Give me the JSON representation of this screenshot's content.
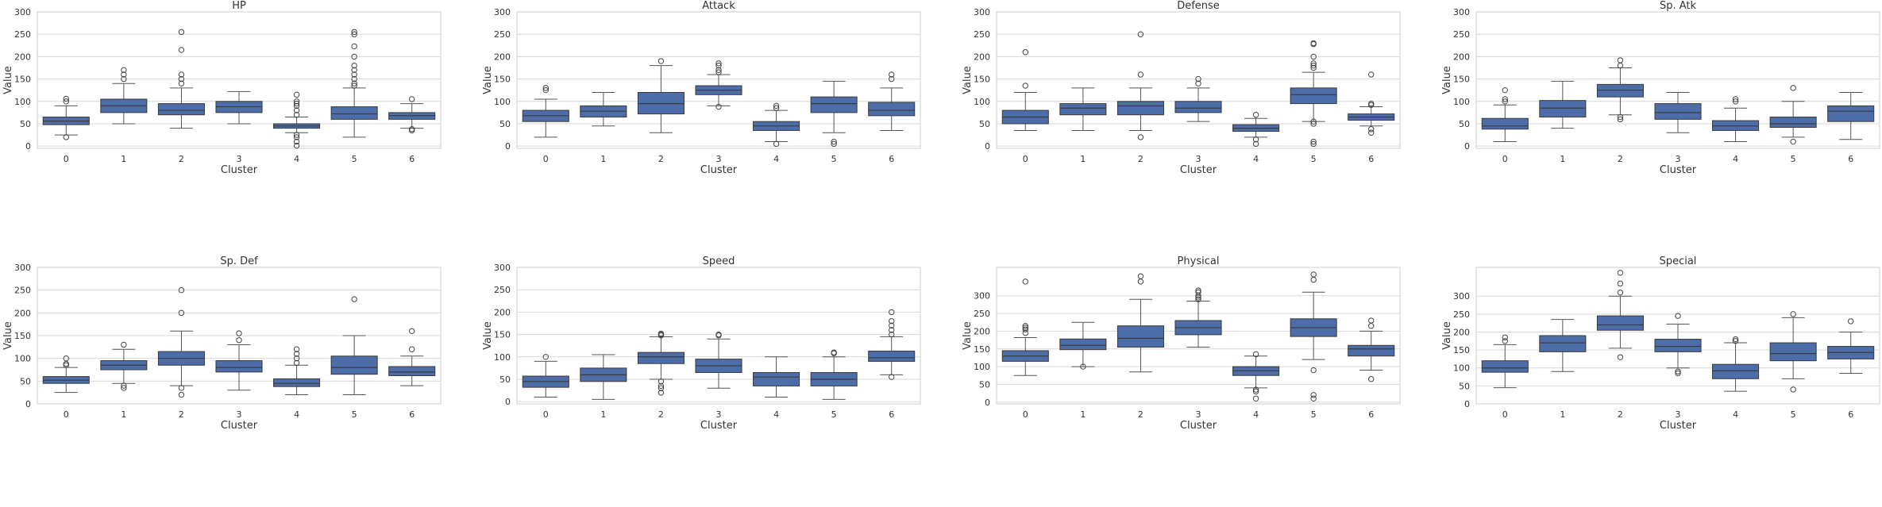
{
  "chart_data": [
    {
      "type": "box",
      "title": "HP",
      "xlabel": "Cluster",
      "ylabel": "Value",
      "categories": [
        "0",
        "1",
        "2",
        "3",
        "4",
        "5",
        "6"
      ],
      "ylim": [
        -5,
        300
      ],
      "yticks": [
        0,
        50,
        100,
        150,
        200,
        250,
        300
      ],
      "boxes": [
        {
          "whislo": 25,
          "q1": 48,
          "med": 56,
          "q3": 65,
          "whishi": 90,
          "fliers": [
            20,
            100,
            106
          ]
        },
        {
          "whislo": 50,
          "q1": 75,
          "med": 90,
          "q3": 105,
          "whishi": 140,
          "fliers": [
            150,
            160,
            170
          ]
        },
        {
          "whislo": 40,
          "q1": 70,
          "med": 80,
          "q3": 95,
          "whishi": 130,
          "fliers": [
            140,
            150,
            160,
            215,
            255
          ]
        },
        {
          "whislo": 50,
          "q1": 75,
          "med": 88,
          "q3": 100,
          "whishi": 122,
          "fliers": []
        },
        {
          "whislo": 30,
          "q1": 40,
          "med": 45,
          "q3": 50,
          "whishi": 65,
          "fliers": [
            1,
            10,
            20,
            25,
            70,
            80,
            90,
            95,
            100,
            115
          ]
        },
        {
          "whislo": 20,
          "q1": 60,
          "med": 72,
          "q3": 88,
          "whishi": 130,
          "fliers": [
            135,
            140,
            150,
            160,
            170,
            180,
            200,
            223,
            250,
            255
          ]
        },
        {
          "whislo": 40,
          "q1": 60,
          "med": 68,
          "q3": 75,
          "whishi": 95,
          "fliers": [
            35,
            38,
            105
          ]
        }
      ]
    },
    {
      "type": "box",
      "title": "Attack",
      "xlabel": "Cluster",
      "ylabel": "Value",
      "categories": [
        "0",
        "1",
        "2",
        "3",
        "4",
        "5",
        "6"
      ],
      "ylim": [
        -5,
        300
      ],
      "yticks": [
        0,
        50,
        100,
        150,
        200,
        250,
        300
      ],
      "boxes": [
        {
          "whislo": 20,
          "q1": 55,
          "med": 68,
          "q3": 80,
          "whishi": 105,
          "fliers": [
            125,
            130
          ]
        },
        {
          "whislo": 45,
          "q1": 65,
          "med": 78,
          "q3": 90,
          "whishi": 120,
          "fliers": []
        },
        {
          "whislo": 30,
          "q1": 72,
          "med": 95,
          "q3": 120,
          "whishi": 180,
          "fliers": [
            190
          ]
        },
        {
          "whislo": 90,
          "q1": 115,
          "med": 125,
          "q3": 135,
          "whishi": 160,
          "fliers": [
            88,
            165,
            170,
            180,
            185
          ]
        },
        {
          "whislo": 10,
          "q1": 35,
          "med": 45,
          "q3": 55,
          "whishi": 80,
          "fliers": [
            5,
            85,
            90
          ]
        },
        {
          "whislo": 30,
          "q1": 75,
          "med": 95,
          "q3": 110,
          "whishi": 145,
          "fliers": [
            5,
            10
          ]
        },
        {
          "whislo": 35,
          "q1": 68,
          "med": 80,
          "q3": 98,
          "whishi": 130,
          "fliers": [
            150,
            160
          ]
        }
      ]
    },
    {
      "type": "box",
      "title": "Defense",
      "xlabel": "Cluster",
      "ylabel": "Value",
      "categories": [
        "0",
        "1",
        "2",
        "3",
        "4",
        "5",
        "6"
      ],
      "ylim": [
        -5,
        300
      ],
      "yticks": [
        0,
        50,
        100,
        150,
        200,
        250,
        300
      ],
      "boxes": [
        {
          "whislo": 35,
          "q1": 50,
          "med": 65,
          "q3": 80,
          "whishi": 120,
          "fliers": [
            135,
            210
          ]
        },
        {
          "whislo": 35,
          "q1": 70,
          "med": 85,
          "q3": 95,
          "whishi": 130,
          "fliers": []
        },
        {
          "whislo": 35,
          "q1": 70,
          "med": 90,
          "q3": 100,
          "whishi": 130,
          "fliers": [
            20,
            160,
            250
          ]
        },
        {
          "whislo": 55,
          "q1": 75,
          "med": 85,
          "q3": 100,
          "whishi": 130,
          "fliers": [
            140,
            150
          ]
        },
        {
          "whislo": 20,
          "q1": 33,
          "med": 40,
          "q3": 48,
          "whishi": 62,
          "fliers": [
            5,
            15,
            70
          ]
        },
        {
          "whislo": 55,
          "q1": 95,
          "med": 115,
          "q3": 130,
          "whishi": 165,
          "fliers": [
            5,
            10,
            50,
            55,
            175,
            180,
            185,
            200,
            228,
            230
          ]
        },
        {
          "whislo": 45,
          "q1": 58,
          "med": 65,
          "q3": 72,
          "whishi": 88,
          "fliers": [
            30,
            38,
            92,
            95,
            160
          ]
        }
      ]
    },
    {
      "type": "box",
      "title": "Sp. Atk",
      "xlabel": "Cluster",
      "ylabel": "Value",
      "categories": [
        "0",
        "1",
        "2",
        "3",
        "4",
        "5",
        "6"
      ],
      "ylim": [
        -5,
        300
      ],
      "yticks": [
        0,
        50,
        100,
        150,
        200,
        250,
        300
      ],
      "boxes": [
        {
          "whislo": 10,
          "q1": 38,
          "med": 45,
          "q3": 62,
          "whishi": 92,
          "fliers": [
            100,
            105,
            125
          ]
        },
        {
          "whislo": 40,
          "q1": 65,
          "med": 85,
          "q3": 102,
          "whishi": 145,
          "fliers": []
        },
        {
          "whislo": 70,
          "q1": 110,
          "med": 125,
          "q3": 138,
          "whishi": 175,
          "fliers": [
            60,
            65,
            180,
            192
          ]
        },
        {
          "whislo": 30,
          "q1": 60,
          "med": 75,
          "q3": 95,
          "whishi": 120,
          "fliers": []
        },
        {
          "whislo": 10,
          "q1": 35,
          "med": 45,
          "q3": 57,
          "whishi": 85,
          "fliers": [
            100,
            105
          ]
        },
        {
          "whislo": 20,
          "q1": 42,
          "med": 50,
          "q3": 65,
          "whishi": 100,
          "fliers": [
            10,
            130
          ]
        },
        {
          "whislo": 15,
          "q1": 55,
          "med": 78,
          "q3": 90,
          "whishi": 120,
          "fliers": []
        }
      ]
    },
    {
      "type": "box",
      "title": "Sp. Def",
      "xlabel": "Cluster",
      "ylabel": "Value",
      "categories": [
        "0",
        "1",
        "2",
        "3",
        "4",
        "5",
        "6"
      ],
      "ylim": [
        0,
        300
      ],
      "yticks": [
        0,
        50,
        100,
        150,
        200,
        250,
        300
      ],
      "boxes": [
        {
          "whislo": 25,
          "q1": 45,
          "med": 52,
          "q3": 60,
          "whishi": 80,
          "fliers": [
            85,
            88,
            100
          ]
        },
        {
          "whislo": 45,
          "q1": 75,
          "med": 85,
          "q3": 95,
          "whishi": 120,
          "fliers": [
            35,
            40,
            130
          ]
        },
        {
          "whislo": 40,
          "q1": 85,
          "med": 100,
          "q3": 115,
          "whishi": 160,
          "fliers": [
            20,
            35,
            200,
            250
          ]
        },
        {
          "whislo": 30,
          "q1": 70,
          "med": 80,
          "q3": 95,
          "whishi": 130,
          "fliers": [
            140,
            155
          ]
        },
        {
          "whislo": 20,
          "q1": 38,
          "med": 45,
          "q3": 55,
          "whishi": 85,
          "fliers": [
            90,
            100,
            110,
            120
          ]
        },
        {
          "whislo": 20,
          "q1": 65,
          "med": 80,
          "q3": 105,
          "whishi": 150,
          "fliers": [
            230
          ]
        },
        {
          "whislo": 40,
          "q1": 62,
          "med": 70,
          "q3": 82,
          "whishi": 105,
          "fliers": [
            120,
            160
          ]
        }
      ]
    },
    {
      "type": "box",
      "title": "Speed",
      "xlabel": "Cluster",
      "ylabel": "Value",
      "categories": [
        "0",
        "1",
        "2",
        "3",
        "4",
        "5",
        "6"
      ],
      "ylim": [
        -5,
        300
      ],
      "yticks": [
        0,
        50,
        100,
        150,
        200,
        250,
        300
      ],
      "boxes": [
        {
          "whislo": 10,
          "q1": 32,
          "med": 45,
          "q3": 57,
          "whishi": 90,
          "fliers": [
            100
          ]
        },
        {
          "whislo": 5,
          "q1": 45,
          "med": 60,
          "q3": 75,
          "whishi": 105,
          "fliers": []
        },
        {
          "whislo": 50,
          "q1": 85,
          "med": 100,
          "q3": 110,
          "whishi": 145,
          "fliers": [
            20,
            30,
            35,
            45,
            148,
            150,
            152
          ]
        },
        {
          "whislo": 30,
          "q1": 65,
          "med": 80,
          "q3": 95,
          "whishi": 140,
          "fliers": [
            148,
            150
          ]
        },
        {
          "whislo": 10,
          "q1": 35,
          "med": 55,
          "q3": 65,
          "whishi": 100,
          "fliers": []
        },
        {
          "whislo": 5,
          "q1": 35,
          "med": 50,
          "q3": 65,
          "whishi": 100,
          "fliers": [
            108,
            110
          ]
        },
        {
          "whislo": 60,
          "q1": 90,
          "med": 98,
          "q3": 113,
          "whishi": 145,
          "fliers": [
            55,
            150,
            160,
            170,
            180,
            200
          ]
        }
      ]
    },
    {
      "type": "box",
      "title": "Physical",
      "xlabel": "Cluster",
      "ylabel": "Value",
      "categories": [
        "0",
        "1",
        "2",
        "3",
        "4",
        "5",
        "6"
      ],
      "ylim": [
        -5,
        380
      ],
      "yticks": [
        0,
        50,
        100,
        150,
        200,
        250,
        300
      ],
      "boxes": [
        {
          "whislo": 75,
          "q1": 115,
          "med": 130,
          "q3": 145,
          "whishi": 182,
          "fliers": [
            195,
            205,
            210,
            215,
            340
          ]
        },
        {
          "whislo": 100,
          "q1": 148,
          "med": 160,
          "q3": 178,
          "whishi": 225,
          "fliers": [
            100
          ]
        },
        {
          "whislo": 85,
          "q1": 155,
          "med": 180,
          "q3": 215,
          "whishi": 290,
          "fliers": [
            340,
            355
          ]
        },
        {
          "whislo": 155,
          "q1": 190,
          "med": 210,
          "q3": 230,
          "whishi": 285,
          "fliers": [
            290,
            295,
            300,
            310,
            315
          ]
        },
        {
          "whislo": 40,
          "q1": 75,
          "med": 88,
          "q3": 100,
          "whishi": 130,
          "fliers": [
            10,
            30,
            35,
            135
          ]
        },
        {
          "whislo": 120,
          "q1": 185,
          "med": 210,
          "q3": 235,
          "whishi": 310,
          "fliers": [
            10,
            20,
            90,
            345,
            360
          ]
        },
        {
          "whislo": 90,
          "q1": 130,
          "med": 150,
          "q3": 160,
          "whishi": 200,
          "fliers": [
            65,
            215,
            230
          ]
        }
      ]
    },
    {
      "type": "box",
      "title": "Special",
      "xlabel": "Cluster",
      "ylabel": "Value",
      "categories": [
        "0",
        "1",
        "2",
        "3",
        "4",
        "5",
        "6"
      ],
      "ylim": [
        0,
        380
      ],
      "yticks": [
        0,
        50,
        100,
        150,
        200,
        250,
        300
      ],
      "boxes": [
        {
          "whislo": 45,
          "q1": 88,
          "med": 100,
          "q3": 120,
          "whishi": 165,
          "fliers": [
            175,
            185
          ]
        },
        {
          "whislo": 90,
          "q1": 145,
          "med": 170,
          "q3": 190,
          "whishi": 235,
          "fliers": []
        },
        {
          "whislo": 155,
          "q1": 205,
          "med": 220,
          "q3": 245,
          "whishi": 300,
          "fliers": [
            130,
            310,
            335,
            365
          ]
        },
        {
          "whislo": 100,
          "q1": 145,
          "med": 160,
          "q3": 180,
          "whishi": 222,
          "fliers": [
            85,
            90,
            245
          ]
        },
        {
          "whislo": 35,
          "q1": 70,
          "med": 92,
          "q3": 110,
          "whishi": 170,
          "fliers": [
            175,
            180
          ]
        },
        {
          "whislo": 70,
          "q1": 120,
          "med": 140,
          "q3": 170,
          "whishi": 240,
          "fliers": [
            40,
            250
          ]
        },
        {
          "whislo": 85,
          "q1": 125,
          "med": 143,
          "q3": 160,
          "whishi": 200,
          "fliers": [
            230
          ]
        }
      ]
    }
  ]
}
